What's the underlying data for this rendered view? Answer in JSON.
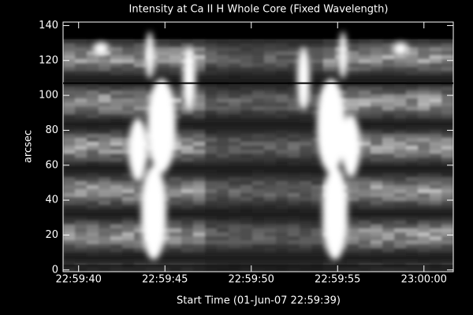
{
  "chart_data": {
    "type": "image",
    "title": "Intensity at Ca II H Whole Core (Fixed Wavelength)",
    "xlabel": "Start Time (01-Jun-07 22:59:39)",
    "ylabel": "arcsec",
    "xlim": [
      0.1,
      22.7
    ],
    "xticks": [
      {
        "value": 1,
        "label": "22:59:40"
      },
      {
        "value": 6,
        "label": "22:59:45"
      },
      {
        "value": 11,
        "label": "22:59:50"
      },
      {
        "value": 16,
        "label": "22:59:55"
      },
      {
        "value": 21,
        "label": "23:00:00"
      }
    ],
    "ylim": [
      -1,
      142
    ],
    "yticks": [
      0,
      20,
      40,
      60,
      80,
      100,
      120,
      140
    ],
    "image_top": 132,
    "reference_line": 107
  }
}
